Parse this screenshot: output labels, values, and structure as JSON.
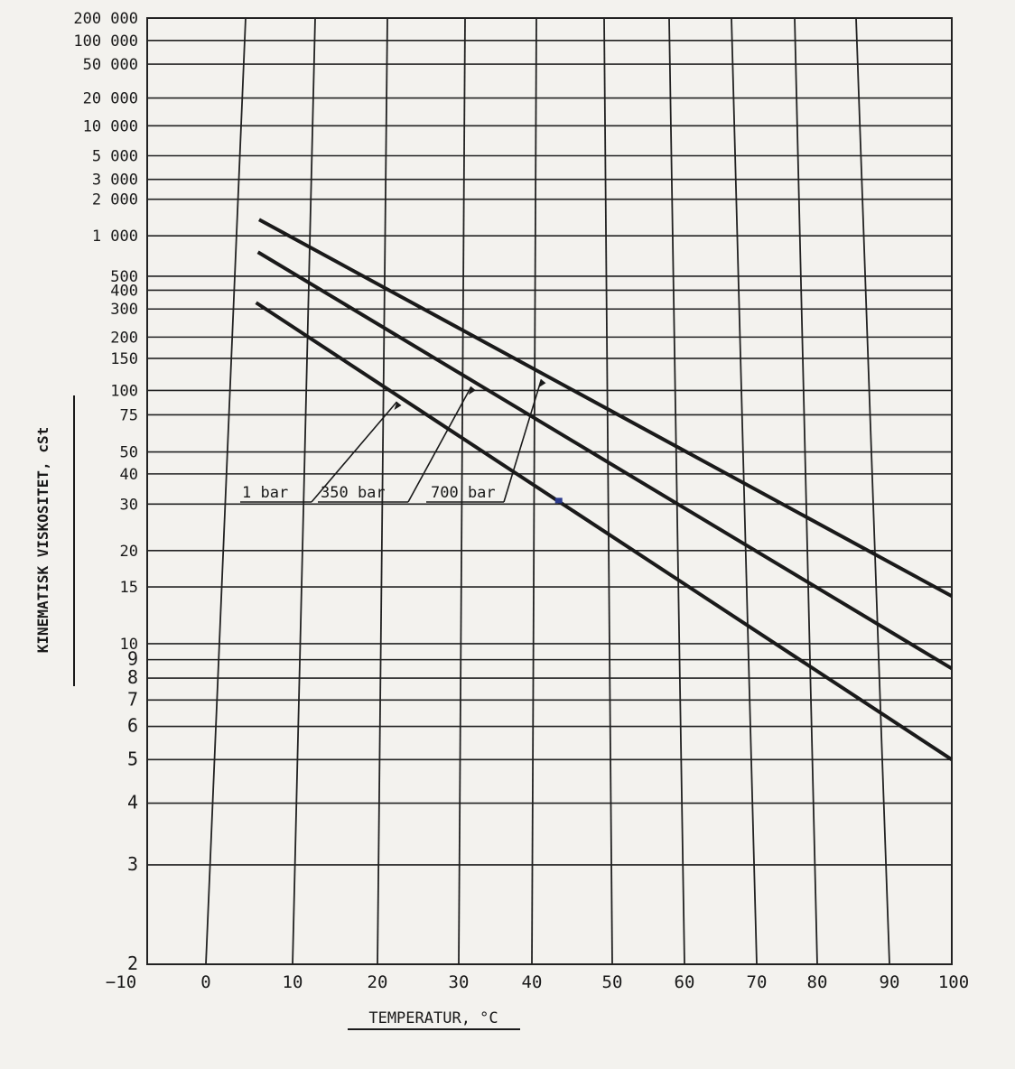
{
  "chart_data": {
    "type": "line",
    "title": "",
    "xlabel": "TEMPERATUR, °C",
    "ylabel": "KINEMATISK VISKOSITET, cSt",
    "x_ticks": [
      -10,
      0,
      10,
      20,
      30,
      40,
      50,
      60,
      70,
      80,
      90,
      100
    ],
    "x_tick_labels": [
      "−10",
      "0",
      "10",
      "20",
      "30",
      "40",
      "50",
      "60",
      "70",
      "80",
      "90",
      "100"
    ],
    "xlim": [
      -10,
      100
    ],
    "y_scale": "walther-log-log",
    "y_ticks": [
      2,
      3,
      4,
      5,
      6,
      7,
      8,
      9,
      10,
      15,
      20,
      30,
      40,
      50,
      75,
      100,
      150,
      200,
      300,
      400,
      500,
      1000,
      2000,
      3000,
      5000,
      10000,
      20000,
      50000,
      100000,
      200000
    ],
    "y_tick_labels": [
      "2",
      "3",
      "4",
      "5",
      "6",
      "7",
      "8",
      "9",
      "10",
      "15",
      "20",
      "30",
      "40",
      "50",
      "75",
      "100",
      "150",
      "200",
      "300",
      "400",
      "500",
      "1 000",
      "2 000",
      "3 000",
      "5 000",
      "10 000",
      "20 000",
      "50 000",
      "100 000",
      "200 000"
    ],
    "ylim": [
      2,
      200000
    ],
    "grid": true,
    "series": [
      {
        "name": "1 bar",
        "x": [
          3,
          100
        ],
        "y": [
          330,
          5
        ]
      },
      {
        "name": "350 bar",
        "x": [
          3,
          100
        ],
        "y": [
          750,
          8.5
        ]
      },
      {
        "name": "700 bar",
        "x": [
          3,
          100
        ],
        "y": [
          1350,
          14
        ]
      }
    ],
    "annotations": [
      {
        "text": "1 bar",
        "points_to": "1 bar"
      },
      {
        "text": "350 bar",
        "points_to": "350 bar"
      },
      {
        "text": "700 bar",
        "points_to": "700 bar"
      }
    ],
    "colors": {
      "line": "#1a1a1a",
      "grid": "#222222",
      "paper": "#f3f2ee"
    }
  }
}
